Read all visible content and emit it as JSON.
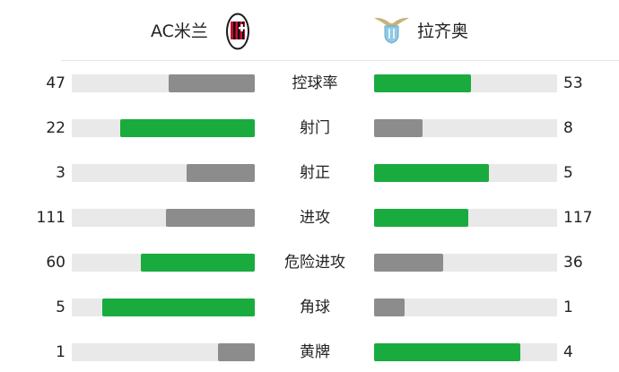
{
  "header": {
    "home_team": "AC米兰",
    "away_team": "拉齐奥",
    "home_logo": "ac-milan-crest",
    "away_logo": "lazio-crest"
  },
  "colors": {
    "leader": "#1aab3f",
    "trailer": "#8c8c8c",
    "track": "#e9e9e9"
  },
  "stats": [
    {
      "label": "控球率",
      "home": "47",
      "away": "53"
    },
    {
      "label": "射门",
      "home": "22",
      "away": "8"
    },
    {
      "label": "射正",
      "home": "3",
      "away": "5"
    },
    {
      "label": "进攻",
      "home": "111",
      "away": "117"
    },
    {
      "label": "危险进攻",
      "home": "60",
      "away": "36"
    },
    {
      "label": "角球",
      "home": "5",
      "away": "1"
    },
    {
      "label": "黄牌",
      "home": "1",
      "away": "4"
    }
  ]
}
